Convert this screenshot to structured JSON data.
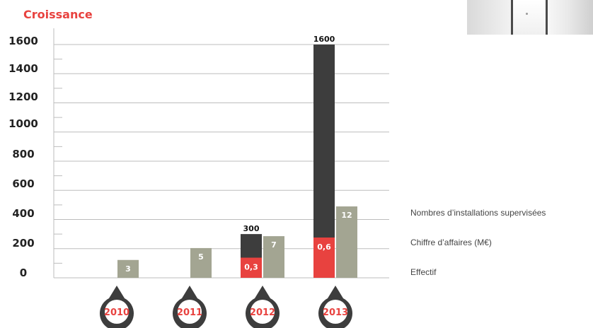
{
  "page": {
    "title": "Croissance"
  },
  "legend": {
    "installations": "Nombres d’installations supervisées",
    "revenue": "Chiffre d’affaires (M€)",
    "staff": "Effectif"
  },
  "colors": {
    "installations": "#3d3d3d",
    "revenue": "#e8423f",
    "staff": "#a3a592",
    "title": "#e8423f"
  },
  "chart_data": {
    "type": "bar",
    "title": "Croissance",
    "categories": [
      "2010",
      "2011",
      "2012",
      "2013"
    ],
    "ylim": [
      0,
      1600
    ],
    "yticks": [
      "0",
      "200",
      "400",
      "600",
      "800",
      "1000",
      "1200",
      "1400",
      "1600"
    ],
    "series": [
      {
        "name": "Nombres d’installations supervisées",
        "values": [
          null,
          null,
          300,
          1600
        ],
        "labels": [
          "",
          "",
          "300",
          "1600"
        ]
      },
      {
        "name": "Chiffre d’affaires (M€)",
        "values": [
          null,
          null,
          0.3,
          0.6
        ],
        "labels": [
          "",
          "",
          "0,3",
          "0,6"
        ]
      },
      {
        "name": "Effectif",
        "values": [
          3,
          5,
          7,
          12
        ],
        "labels": [
          "3",
          "5",
          "7",
          "12"
        ]
      }
    ]
  }
}
